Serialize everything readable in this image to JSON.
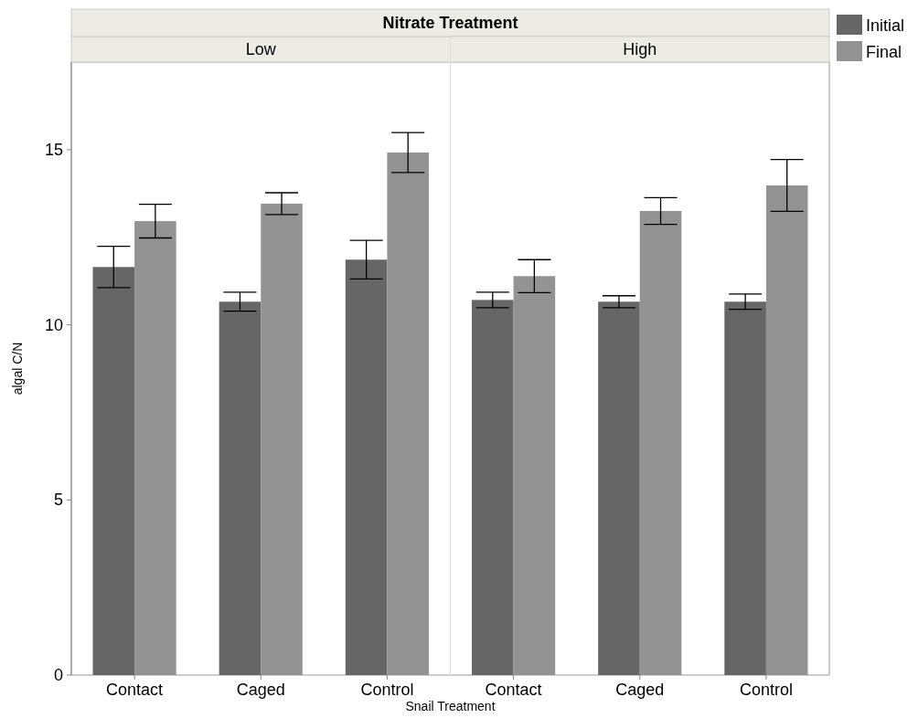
{
  "chart_data": [
    {
      "type": "bar",
      "title": "Low",
      "annotations": [
        "Nitrate Treatment"
      ],
      "xlabel": "Snail Treatment",
      "ylabel": "algal C/N",
      "categories": [
        "Contact",
        "Caged",
        "Control"
      ],
      "ylim": [
        0,
        17.5
      ],
      "yticks": [
        0,
        5,
        10,
        15
      ],
      "series": [
        {
          "color": "#666666",
          "values": [
            11.65,
            10.66,
            11.86
          ],
          "errors": [
            0.59,
            0.27,
            0.55
          ]
        },
        {
          "color": "#939393",
          "values": [
            12.96,
            13.46,
            14.92
          ],
          "errors": [
            0.48,
            0.31,
            0.57
          ]
        }
      ]
    },
    {
      "type": "bar",
      "title": "High",
      "categories": [
        "Contact",
        "Caged",
        "Control"
      ],
      "ylim": [
        0,
        17.5
      ],
      "tick_labels": "x",
      "legend": "right",
      "series": [
        {
          "name": "Initial",
          "color": "#666666",
          "values": [
            10.71,
            10.66,
            10.66
          ],
          "errors": [
            0.22,
            0.17,
            0.22
          ]
        },
        {
          "name": "Final",
          "color": "#939393",
          "values": [
            11.39,
            13.25,
            13.98
          ],
          "errors": [
            0.47,
            0.38,
            0.74
          ]
        }
      ]
    }
  ]
}
